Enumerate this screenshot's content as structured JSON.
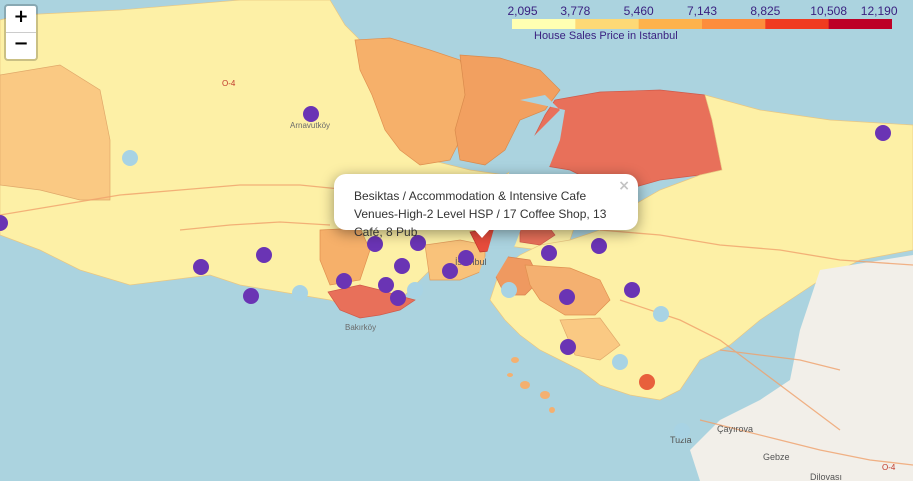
{
  "zoom": {
    "in_label": "+",
    "out_label": "−"
  },
  "legend": {
    "title": "House Sales Price in Istanbul",
    "ticks": [
      "2,095",
      "3,778",
      "5,460",
      "7,143",
      "8,825",
      "10,508",
      "12,190"
    ],
    "colors": [
      "#ffffb2",
      "#fed976",
      "#feb24c",
      "#fd8d3c",
      "#f03b20",
      "#bd0026"
    ]
  },
  "popup": {
    "text": "Besiktas / Accommodation & Intensive Cafe Venues-High-2 Level HSP / 17 Coffee Shop, 13 Café, 8 Pub",
    "close_label": "×"
  },
  "map_labels": {
    "amavutkoy": "Arnavutköy",
    "istanbul": "İstanbul",
    "bakirkoy": "Bakırköy",
    "tuzla": "Tuzla",
    "cayirova": "Çayırova",
    "gebze": "Gebze",
    "dilovasi": "Dilovası",
    "o4_top": "O-4",
    "o4_bottom": "O-4"
  },
  "marker_colors": {
    "cluster_a": "#6a34b4",
    "cluster_b": "#a8d3e4",
    "cluster_c": "#e8603c"
  }
}
